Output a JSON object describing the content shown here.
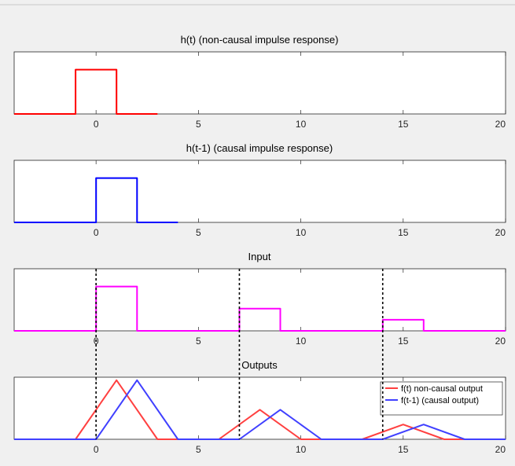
{
  "chart_data": [
    {
      "type": "line",
      "title": "h(t) (non-causal impulse response)",
      "xlim": [
        -4,
        20
      ],
      "ylim": [
        0,
        1.4
      ],
      "xticks": [
        0,
        5,
        10,
        15,
        20
      ],
      "series": [
        {
          "color": "#ff0000",
          "x": [
            -4,
            -1,
            -1,
            1,
            1,
            3
          ],
          "y": [
            0,
            0,
            1,
            1,
            0,
            0
          ]
        }
      ]
    },
    {
      "type": "line",
      "title": "h(t-1) (causal impulse response)",
      "xlim": [
        -4,
        20
      ],
      "ylim": [
        0,
        1.4
      ],
      "xticks": [
        0,
        5,
        10,
        15,
        20
      ],
      "series": [
        {
          "color": "#0000ff",
          "x": [
            -4,
            0,
            0,
            2,
            2,
            4
          ],
          "y": [
            0,
            0,
            1,
            1,
            0,
            0
          ]
        }
      ]
    },
    {
      "type": "line",
      "title": "Input",
      "xlim": [
        -4,
        20
      ],
      "ylim": [
        0,
        1.4
      ],
      "xticks": [
        0,
        5,
        10,
        15,
        20
      ],
      "series": [
        {
          "color": "#ff00ff",
          "x": [
            -4,
            0,
            0,
            2,
            2,
            7,
            7,
            9,
            9,
            14,
            14,
            16,
            16,
            20
          ],
          "y": [
            0,
            0,
            1,
            1,
            0,
            0,
            0.5,
            0.5,
            0,
            0,
            0.25,
            0.25,
            0,
            0
          ]
        }
      ]
    },
    {
      "type": "line",
      "title": "Outputs",
      "xlim": [
        -4,
        20
      ],
      "ylim": [
        0,
        1.05
      ],
      "xticks": [
        0,
        5,
        10,
        15,
        20
      ],
      "legend_location": "top-right",
      "series": [
        {
          "name": "f(t) non-causal output",
          "color": "#ff4040",
          "x": [
            -4,
            -1,
            1,
            3,
            6,
            8,
            10,
            13,
            15,
            17,
            20
          ],
          "y": [
            0,
            0,
            1,
            0,
            0,
            0.5,
            0,
            0,
            0.25,
            0,
            0
          ]
        },
        {
          "name": "f(t-1) (causal output)",
          "color": "#4040ff",
          "x": [
            -4,
            0,
            2,
            4,
            7,
            9,
            11,
            14,
            16,
            18,
            20
          ],
          "y": [
            0,
            0,
            1,
            0,
            0,
            0.5,
            0,
            0,
            0.25,
            0,
            0
          ]
        }
      ]
    }
  ],
  "input_markers_x": [
    0,
    7,
    14
  ]
}
